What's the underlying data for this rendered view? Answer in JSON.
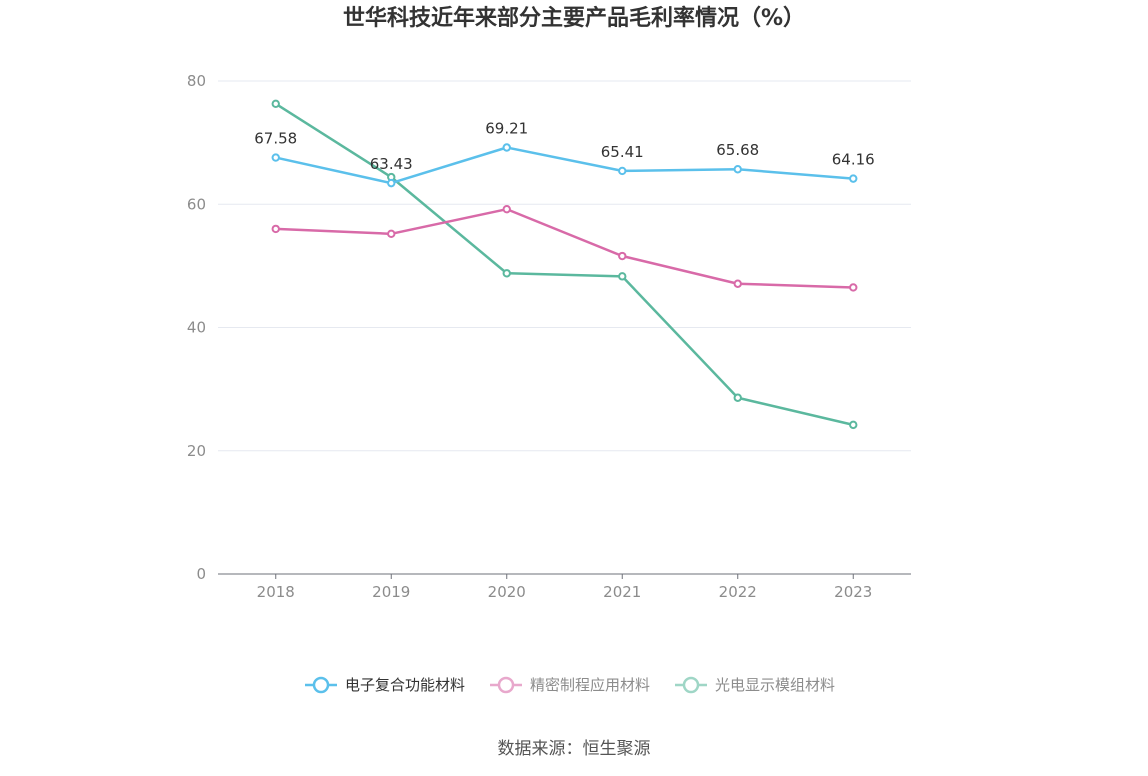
{
  "chart_data": {
    "type": "line",
    "title": "世华科技近年来部分主要产品毛利率情况（%）",
    "categories": [
      "2018",
      "2019",
      "2020",
      "2021",
      "2022",
      "2023"
    ],
    "ylim": [
      0,
      80
    ],
    "yticks": [
      0,
      20,
      40,
      60,
      80
    ],
    "grid": true,
    "legend_position": "bottom",
    "series": [
      {
        "name": "电子复合功能材料",
        "color": "#5bc0eb",
        "values": [
          67.58,
          63.43,
          69.21,
          65.41,
          65.68,
          64.16
        ],
        "labels": [
          "67.58",
          "63.43",
          "69.21",
          "65.41",
          "65.68",
          "64.16"
        ]
      },
      {
        "name": "精密制程应用材料",
        "color": "#d86aa8",
        "values": [
          56.0,
          55.2,
          59.2,
          51.6,
          47.1,
          46.5
        ]
      },
      {
        "name": "光电显示模组材料",
        "color": "#5bb89e",
        "values": [
          76.3,
          64.4,
          48.8,
          48.3,
          28.6,
          24.2
        ]
      }
    ],
    "legend_colors_muted": [
      "#5bc0eb",
      "#e8a8cc",
      "#9fd6c6"
    ],
    "legend_text_colors": [
      "#333333",
      "#8c8c8c",
      "#8c8c8c"
    ],
    "source": "数据来源：恒生聚源"
  }
}
